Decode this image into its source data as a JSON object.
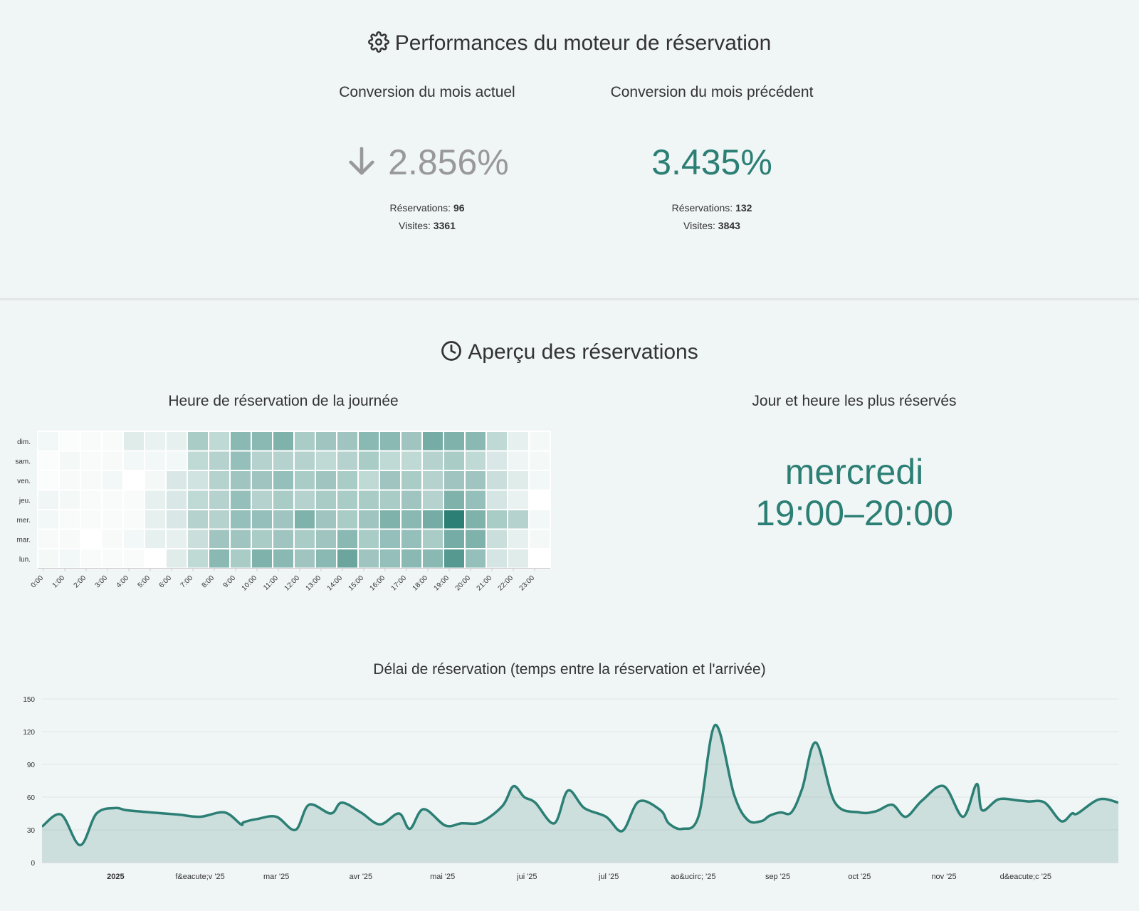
{
  "performance": {
    "title": "Performances du moteur de réservation",
    "current": {
      "label": "Conversion du mois actuel",
      "value": "2.856%",
      "trend": "down",
      "reservations_label": "Réservations:",
      "reservations": "96",
      "visits_label": "Visites:",
      "visits": "3361"
    },
    "previous": {
      "label": "Conversion du mois précédent",
      "value": "3.435%",
      "reservations_label": "Réservations:",
      "reservations": "132",
      "visits_label": "Visites:",
      "visits": "3843"
    }
  },
  "overview": {
    "title": "Aperçu des réservations",
    "heatmap_title": "Heure de réservation de la journée",
    "busiest_title": "Jour et heure les plus réservés",
    "busiest_day": "mercredi",
    "busiest_hour": "19:00–20:00"
  },
  "colors": {
    "accent": "#2b7f74",
    "muted": "#999999",
    "background": "#f0f5f5"
  },
  "chart_data": [
    {
      "type": "heatmap",
      "title": "Heure de réservation de la journée",
      "rows": [
        "dim.",
        "sam.",
        "ven.",
        "jeu.",
        "mer.",
        "mar.",
        "lun."
      ],
      "columns": [
        "0:00",
        "1:00",
        "2:00",
        "3:00",
        "4:00",
        "5:00",
        "6:00",
        "7:00",
        "8:00",
        "9:00",
        "10:00",
        "11:00",
        "12:00",
        "13:00",
        "14:00",
        "15:00",
        "16:00",
        "17:00",
        "18:00",
        "19:00",
        "20:00",
        "21:00",
        "22:00",
        "23:00"
      ],
      "values": [
        [
          0.06,
          0.02,
          0.03,
          0.03,
          0.15,
          0.1,
          0.12,
          0.4,
          0.3,
          0.55,
          0.55,
          0.6,
          0.4,
          0.45,
          0.45,
          0.55,
          0.55,
          0.45,
          0.65,
          0.6,
          0.55,
          0.3,
          0.12,
          0.05
        ],
        [
          0.02,
          0.05,
          0.03,
          0.04,
          0.06,
          0.06,
          0.06,
          0.3,
          0.35,
          0.5,
          0.35,
          0.35,
          0.35,
          0.3,
          0.35,
          0.4,
          0.3,
          0.3,
          0.35,
          0.4,
          0.3,
          0.18,
          0.08,
          0.05
        ],
        [
          0.02,
          0.04,
          0.04,
          0.06,
          0.0,
          0.05,
          0.18,
          0.22,
          0.35,
          0.45,
          0.45,
          0.5,
          0.4,
          0.45,
          0.4,
          0.3,
          0.45,
          0.4,
          0.35,
          0.45,
          0.45,
          0.25,
          0.15,
          0.06
        ],
        [
          0.07,
          0.05,
          0.03,
          0.03,
          0.03,
          0.12,
          0.18,
          0.3,
          0.35,
          0.5,
          0.35,
          0.4,
          0.35,
          0.4,
          0.4,
          0.4,
          0.4,
          0.45,
          0.35,
          0.6,
          0.5,
          0.2,
          0.1,
          0.0
        ],
        [
          0.06,
          0.03,
          0.03,
          0.03,
          0.03,
          0.12,
          0.18,
          0.35,
          0.35,
          0.5,
          0.5,
          0.45,
          0.6,
          0.45,
          0.4,
          0.45,
          0.6,
          0.55,
          0.65,
          1.0,
          0.6,
          0.4,
          0.35,
          0.06
        ],
        [
          0.04,
          0.04,
          0.0,
          0.04,
          0.06,
          0.12,
          0.12,
          0.25,
          0.45,
          0.45,
          0.4,
          0.45,
          0.4,
          0.45,
          0.55,
          0.4,
          0.5,
          0.5,
          0.4,
          0.65,
          0.6,
          0.25,
          0.12,
          0.05
        ],
        [
          0.05,
          0.06,
          0.03,
          0.03,
          0.03,
          0.0,
          0.15,
          0.3,
          0.55,
          0.4,
          0.6,
          0.55,
          0.45,
          0.55,
          0.7,
          0.45,
          0.5,
          0.55,
          0.55,
          0.8,
          0.5,
          0.2,
          0.15,
          0.0
        ]
      ]
    },
    {
      "type": "area",
      "title": "Délai de réservation (temps entre la réservation et l'arrivée)",
      "xlabel": "",
      "ylabel": "",
      "ylim": [
        0,
        150
      ],
      "yticks": [
        0,
        30,
        60,
        90,
        120,
        150
      ],
      "grid": true,
      "xtick_labels": [
        "2025",
        "f&eacute;v '25",
        "mar '25",
        "avr '25",
        "mai '25",
        "jui '25",
        "jul '25",
        "ao&ucirc; '25",
        "sep '25",
        "oct '25",
        "nov '25",
        "d&eacute;c '25"
      ],
      "xtick_dates": [
        "2025-01-01",
        "2025-02-01",
        "2025-03-01",
        "2025-04-01",
        "2025-05-01",
        "2025-06-01",
        "2025-07-01",
        "2025-08-01",
        "2025-09-01",
        "2025-10-01",
        "2025-11-01",
        "2025-12-01"
      ],
      "x": [
        "2024-12-05",
        "2024-12-12",
        "2024-12-19",
        "2024-12-25",
        "2025-01-01",
        "2025-01-05",
        "2025-01-14",
        "2025-01-24",
        "2025-02-01",
        "2025-02-10",
        "2025-02-16",
        "2025-02-17",
        "2025-02-22",
        "2025-03-01",
        "2025-03-08",
        "2025-03-13",
        "2025-03-21",
        "2025-03-25",
        "2025-04-01",
        "2025-04-08",
        "2025-04-15",
        "2025-04-19",
        "2025-04-24",
        "2025-05-02",
        "2025-05-08",
        "2025-05-15",
        "2025-05-23",
        "2025-05-27",
        "2025-05-31",
        "2025-06-04",
        "2025-06-11",
        "2025-06-16",
        "2025-06-22",
        "2025-06-30",
        "2025-07-06",
        "2025-07-12",
        "2025-07-20",
        "2025-07-23",
        "2025-07-28",
        "2025-08-03",
        "2025-08-09",
        "2025-08-16",
        "2025-08-21",
        "2025-08-26",
        "2025-08-29",
        "2025-09-02",
        "2025-09-06",
        "2025-09-10",
        "2025-09-15",
        "2025-09-22",
        "2025-10-01",
        "2025-10-07",
        "2025-10-13",
        "2025-10-18",
        "2025-10-24",
        "2025-11-01",
        "2025-11-08",
        "2025-11-13",
        "2025-11-15",
        "2025-11-21",
        "2025-11-28",
        "2025-12-02",
        "2025-12-08",
        "2025-12-14",
        "2025-12-18",
        "2025-12-20",
        "2025-12-28",
        "2026-01-04"
      ],
      "values": [
        33,
        44,
        16,
        45,
        50,
        48,
        46,
        44,
        42,
        46,
        35,
        37,
        40,
        42,
        30,
        53,
        45,
        55,
        46,
        35,
        45,
        31,
        49,
        34,
        36,
        37,
        52,
        70,
        60,
        55,
        36,
        66,
        50,
        42,
        29,
        56,
        48,
        36,
        31,
        43,
        126,
        62,
        39,
        38,
        43,
        46,
        46,
        68,
        110,
        55,
        46,
        47,
        53,
        42,
        57,
        70,
        42,
        72,
        48,
        58,
        57,
        56,
        55,
        38,
        45,
        45,
        58,
        55
      ]
    }
  ]
}
